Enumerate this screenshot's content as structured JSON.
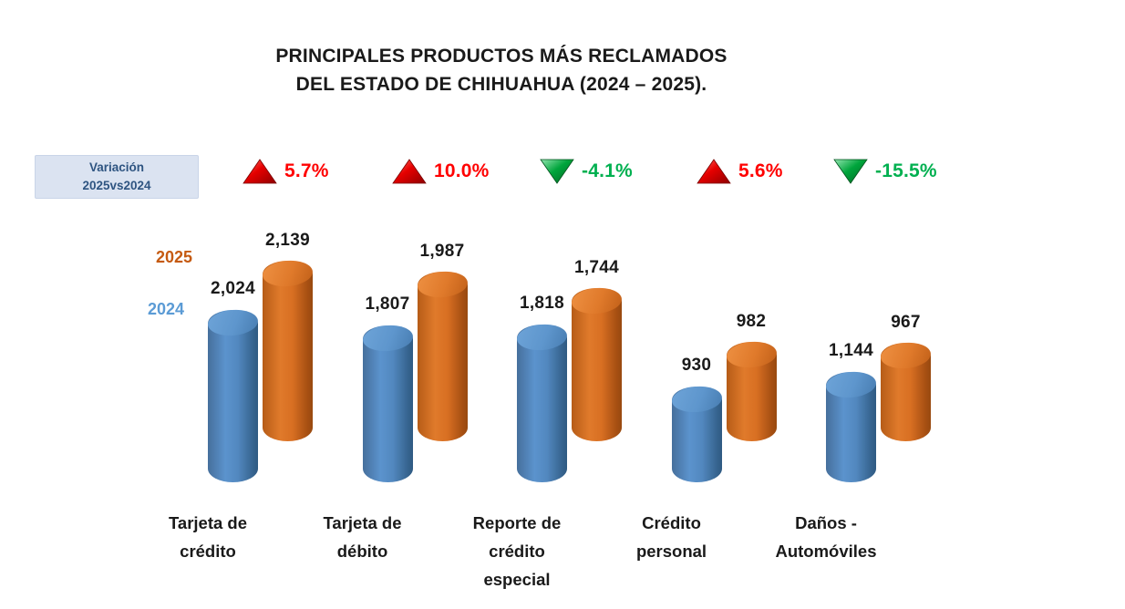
{
  "title": {
    "line1": "PRINCIPALES PRODUCTOS MÁS RECLAMADOS",
    "line2": "DEL ESTADO DE CHIHUAHUA (2024 – 2025)."
  },
  "variation_box": {
    "line1": "Variación",
    "line2": "2025vs2024"
  },
  "colors": {
    "bar_2024": "#5B9BD5",
    "bar_2025": "#C55A11",
    "up_red": "#FF0000",
    "down_green": "#00B050",
    "variation_box_bg": "#DBE3F1",
    "variation_box_text": "#2E5481"
  },
  "chart_data": {
    "type": "bar",
    "categories": [
      "Tarjeta de crédito",
      "Tarjeta de débito",
      "Reporte de crédito especial",
      "Crédito personal",
      "Daños - Automóviles"
    ],
    "series": [
      {
        "name": "2024",
        "color": "#5B9BD5",
        "values": [
          2024,
          1807,
          1818,
          930,
          1144
        ],
        "labels": [
          "2,024",
          "1,807",
          "1,818",
          "930",
          "1,144"
        ]
      },
      {
        "name": "2025",
        "color": "#C55A11",
        "values": [
          2139,
          1987,
          1744,
          982,
          967
        ],
        "labels": [
          "2,139",
          "1,987",
          "1,744",
          "982",
          "967"
        ]
      }
    ],
    "variations": [
      {
        "label": "5.7%",
        "direction": "up",
        "color": "#FF0000"
      },
      {
        "label": "10.0%",
        "direction": "up",
        "color": "#FF0000"
      },
      {
        "label": "-4.1%",
        "direction": "down",
        "color": "#00B050"
      },
      {
        "label": "5.6%",
        "direction": "up",
        "color": "#FF0000"
      },
      {
        "label": "-15.5%",
        "direction": "down",
        "color": "#00B050"
      }
    ],
    "legend": [
      {
        "label": "2025",
        "color": "#C55A11"
      },
      {
        "label": "2024",
        "color": "#5B9BD5"
      }
    ],
    "title": "PRINCIPALES PRODUCTOS MÁS RECLAMADOS DEL ESTADO DE CHIHUAHUA (2024 – 2025).",
    "xlabel": "",
    "ylabel": "",
    "grid": false,
    "legend_position": "left",
    "style": "3d-cylinder"
  }
}
